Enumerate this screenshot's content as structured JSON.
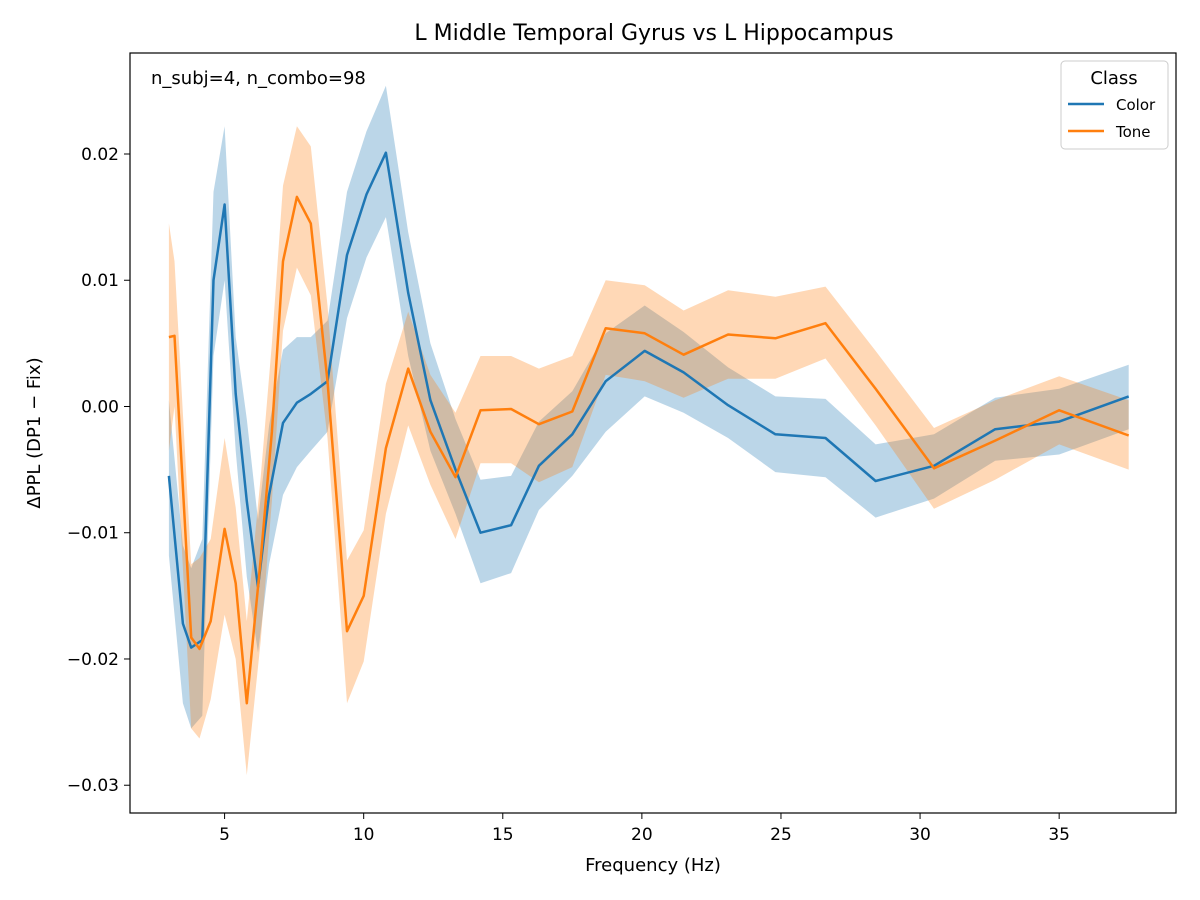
{
  "chart_data": {
    "type": "line",
    "title": "L Middle Temporal Gyrus vs L Hippocampus",
    "xlabel": "Frequency (Hz)",
    "ylabel": "ΔPPL (DP1 − Fix)",
    "annotation": "n_subj=4, n_combo=98",
    "xlim": [
      1.6,
      39.2
    ],
    "ylim": [
      -0.0322,
      0.028
    ],
    "xticks": [
      5,
      10,
      15,
      20,
      25,
      30,
      35
    ],
    "xtick_labels": [
      "5",
      "10",
      "15",
      "20",
      "25",
      "30",
      "35"
    ],
    "yticks": [
      -0.03,
      -0.02,
      -0.01,
      0.0,
      0.01,
      0.02
    ],
    "ytick_labels": [
      "−0.03",
      "−0.02",
      "−0.01",
      "0.00",
      "0.01",
      "0.02"
    ],
    "grid": false,
    "legend": {
      "title": "Class",
      "position": "top-right"
    },
    "series": [
      {
        "name": "Color",
        "color": "#1f77b4",
        "band_color": "#1f77b4",
        "x": [
          3.0,
          3.5,
          3.8,
          4.2,
          4.6,
          5.0,
          5.4,
          5.8,
          6.2,
          6.6,
          7.1,
          7.6,
          8.1,
          8.7,
          9.4,
          10.1,
          10.8,
          11.6,
          12.4,
          13.3,
          14.2,
          15.3,
          16.3,
          17.5,
          18.7,
          20.1,
          21.5,
          23.1,
          24.8,
          26.6,
          28.4,
          30.5,
          32.7,
          35.0,
          37.5
        ],
        "values": [
          -0.0055,
          -0.0172,
          -0.0191,
          -0.0185,
          0.01,
          0.016,
          0.001,
          -0.0075,
          -0.0143,
          -0.007,
          -0.0013,
          0.0003,
          0.001,
          0.002,
          0.012,
          0.0168,
          0.0201,
          0.009,
          0.0005,
          -0.005,
          -0.01,
          -0.0094,
          -0.0047,
          -0.0022,
          0.002,
          0.0044,
          0.0027,
          0.0001,
          -0.0022,
          -0.0025,
          -0.0059,
          -0.0047,
          -0.0018,
          -0.0012,
          0.0008
        ],
        "lower": [
          -0.0118,
          -0.0235,
          -0.0255,
          -0.0245,
          0.004,
          0.01,
          -0.0035,
          -0.0135,
          -0.0195,
          -0.0125,
          -0.007,
          -0.0048,
          -0.0035,
          -0.002,
          0.007,
          0.0118,
          0.015,
          0.004,
          -0.0035,
          -0.0085,
          -0.014,
          -0.0132,
          -0.0082,
          -0.0055,
          -0.002,
          0.0008,
          -0.0005,
          -0.0025,
          -0.0052,
          -0.0056,
          -0.0088,
          -0.0073,
          -0.0043,
          -0.0038,
          -0.0018
        ],
        "upper": [
          0.0005,
          -0.011,
          -0.0128,
          -0.0105,
          0.017,
          0.0222,
          0.0055,
          -0.001,
          -0.009,
          -0.0015,
          0.0045,
          0.0055,
          0.0055,
          0.0068,
          0.017,
          0.0218,
          0.0254,
          0.0138,
          0.005,
          -0.001,
          -0.0058,
          -0.0055,
          -0.0012,
          0.0012,
          0.0058,
          0.008,
          0.0059,
          0.0031,
          0.0008,
          0.0006,
          -0.003,
          -0.0022,
          0.0007,
          0.0014,
          0.0033
        ]
      },
      {
        "name": "Tone",
        "color": "#ff7f0e",
        "band_color": "#ff7f0e",
        "x": [
          3.0,
          3.2,
          3.8,
          4.1,
          4.5,
          5.0,
          5.4,
          5.8,
          6.3,
          6.7,
          7.1,
          7.6,
          8.1,
          8.7,
          9.4,
          10.0,
          10.8,
          11.6,
          12.4,
          13.3,
          14.2,
          15.3,
          16.3,
          17.5,
          18.7,
          20.1,
          21.5,
          23.1,
          24.8,
          26.6,
          28.4,
          30.5,
          32.7,
          35.0,
          37.5
        ],
        "values": [
          0.0055,
          0.0056,
          -0.0183,
          -0.0192,
          -0.017,
          -0.0097,
          -0.014,
          -0.0235,
          -0.012,
          -0.002,
          0.0115,
          0.0166,
          0.0145,
          0.002,
          -0.0178,
          -0.015,
          -0.0033,
          0.003,
          -0.002,
          -0.0056,
          -0.0003,
          -0.0002,
          -0.0014,
          -0.0004,
          0.0062,
          0.0058,
          0.0041,
          0.0057,
          0.0054,
          0.0066,
          0.0014,
          -0.0049,
          -0.0027,
          -0.0003,
          -0.0023
        ],
        "lower": [
          -0.0035,
          0.0,
          -0.0255,
          -0.0263,
          -0.0232,
          -0.0165,
          -0.02,
          -0.0292,
          -0.0185,
          -0.0075,
          0.006,
          0.011,
          0.0088,
          -0.0025,
          -0.0235,
          -0.0202,
          -0.0085,
          -0.0015,
          -0.0062,
          -0.0105,
          -0.0045,
          -0.0045,
          -0.006,
          -0.0048,
          0.0025,
          0.002,
          0.0007,
          0.0022,
          0.0022,
          0.0038,
          -0.0015,
          -0.0081,
          -0.0058,
          -0.003,
          -0.005
        ],
        "upper": [
          0.0145,
          0.0115,
          -0.0125,
          -0.012,
          -0.0105,
          -0.0025,
          -0.008,
          -0.017,
          -0.0055,
          0.005,
          0.0175,
          0.0222,
          0.0206,
          0.008,
          -0.0122,
          -0.0098,
          0.0018,
          0.0075,
          0.0025,
          -0.0005,
          0.004,
          0.004,
          0.003,
          0.004,
          0.01,
          0.0096,
          0.0076,
          0.0092,
          0.0087,
          0.0095,
          0.0044,
          -0.0017,
          0.0005,
          0.0024,
          0.0005
        ]
      }
    ]
  }
}
